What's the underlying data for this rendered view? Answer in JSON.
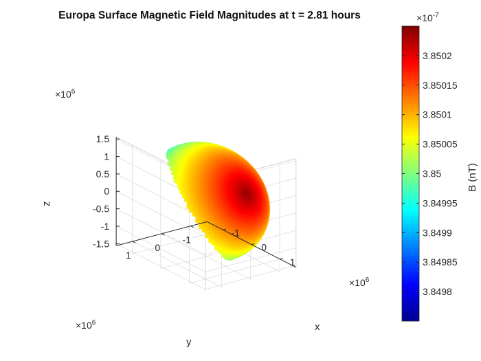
{
  "chart_data": {
    "type": "surface",
    "title": "Europa Surface Magnetic Field Magnitudes at t = 2.81 hours",
    "xlabel": "x",
    "ylabel": "y",
    "zlabel": "z",
    "axis_multiplier": "×10",
    "axis_exponent": "6",
    "x_ticks": [
      "-1",
      "0",
      "1"
    ],
    "y_ticks": [
      "1",
      "0",
      "-1"
    ],
    "z_ticks": [
      "1.5",
      "1",
      "0.5",
      "0",
      "-0.5",
      "-1",
      "-1.5"
    ],
    "xlim": [
      -1.56,
      1.56
    ],
    "ylim": [
      -1.56,
      1.56
    ],
    "zlim": [
      -1.56,
      1.56
    ],
    "sphere_radius": 1.56,
    "grid": true,
    "colormap": "jet",
    "field_max_direction": {
      "x": 0.85,
      "y": -0.05,
      "z": 0.5
    },
    "colorbar": {
      "label": "B (nT)",
      "multiplier": "×10",
      "exponent": "-7",
      "range": [
        3.84975,
        3.85025
      ],
      "ticks": [
        "3.8502",
        "3.85015",
        "3.8501",
        "3.85005",
        "3.85",
        "3.84995",
        "3.8499",
        "3.84985",
        "3.8498"
      ]
    }
  }
}
